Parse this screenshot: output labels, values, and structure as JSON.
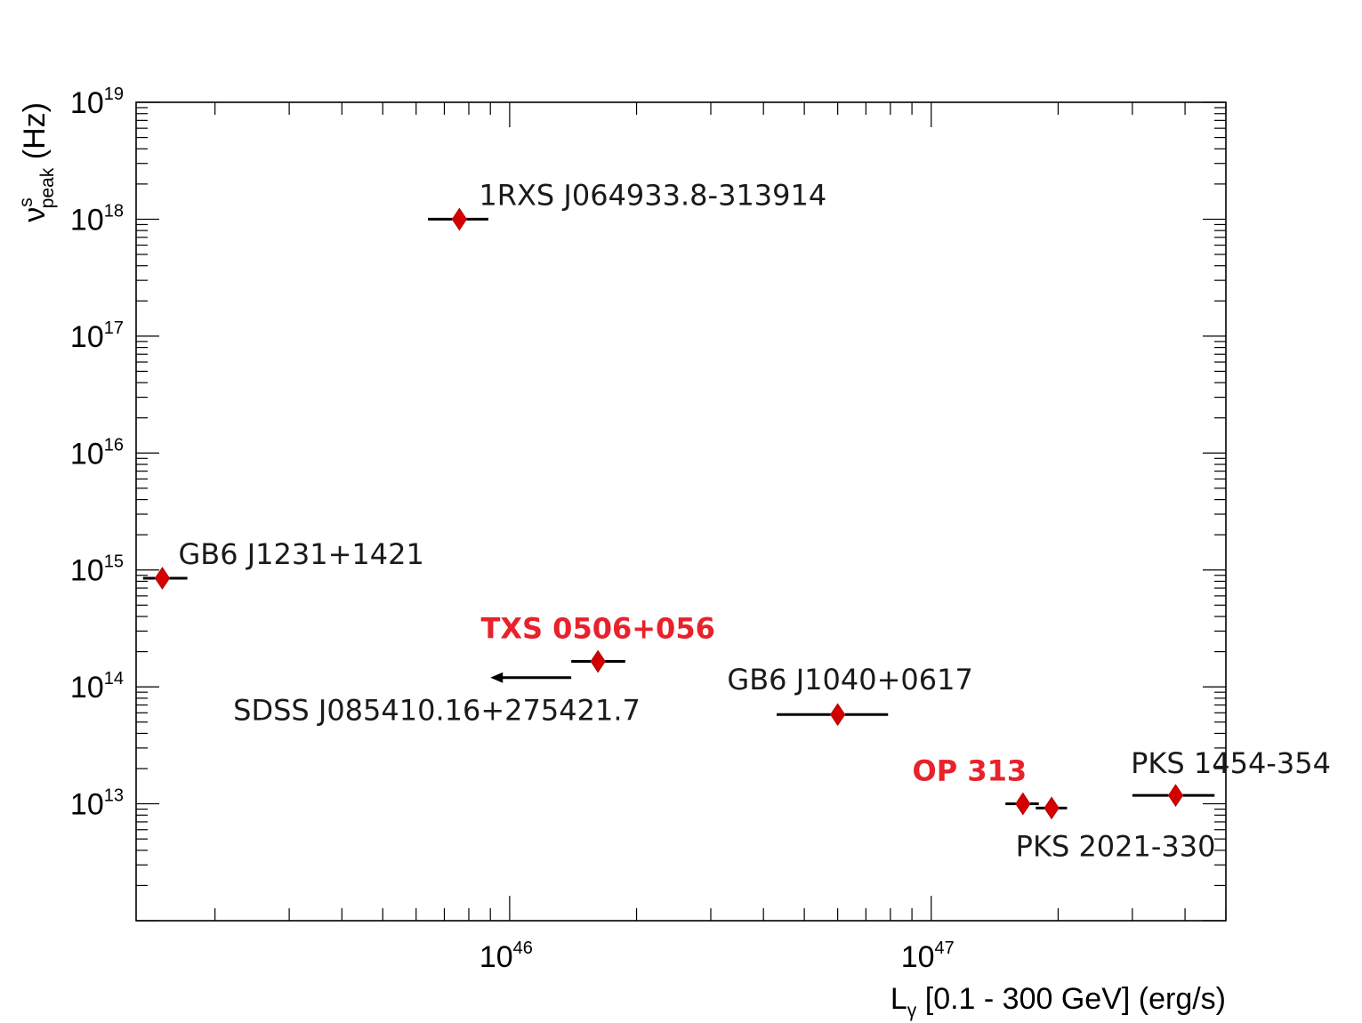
{
  "chart_data": {
    "type": "scatter",
    "title": "",
    "x_scale": "log",
    "y_scale": "log",
    "xlim": [
      1.3e+45,
      5e+47
    ],
    "ylim": [
      1000000000000.0,
      1e+19
    ],
    "xlabel": {
      "main": "L",
      "sub": "γ",
      "rest": " [0.1 - 300 GeV] (erg/s)"
    },
    "ylabel": {
      "main": "ν",
      "sup": "s",
      "sub": "peak",
      "rest": " (Hz)"
    },
    "x_ticks": [
      {
        "base": "10",
        "exp": "46",
        "value": 1e+46
      },
      {
        "base": "10",
        "exp": "47",
        "value": 1e+47
      }
    ],
    "y_ticks": [
      {
        "base": "10",
        "exp": "13",
        "value": 10000000000000.0
      },
      {
        "base": "10",
        "exp": "14",
        "value": 100000000000000.0
      },
      {
        "base": "10",
        "exp": "15",
        "value": 1000000000000000.0
      },
      {
        "base": "10",
        "exp": "16",
        "value": 1e+16
      },
      {
        "base": "10",
        "exp": "17",
        "value": 1e+17
      },
      {
        "base": "10",
        "exp": "18",
        "value": 1e+18
      },
      {
        "base": "10",
        "exp": "19",
        "value": 1e+19
      }
    ],
    "points": [
      {
        "name": "1RXS J064933.8-313914",
        "x": 7.6e+45,
        "y": 1e+18,
        "x_lo": 6.4e+45,
        "x_hi": 8.9e+45,
        "highlight": false,
        "upper_limit": false
      },
      {
        "name": "GB6 J1231+1421",
        "x": 1.5e+45,
        "y": 850000000000000.0,
        "x_lo": 1.35e+45,
        "x_hi": 1.72e+45,
        "highlight": false,
        "upper_limit": false
      },
      {
        "name": "TXS 0506+056",
        "x": 1.62e+46,
        "y": 165000000000000.0,
        "x_lo": 1.4e+46,
        "x_hi": 1.88e+46,
        "highlight": true,
        "upper_limit": false
      },
      {
        "name": "SDSS J085410.16+275421.7",
        "x": 1.4e+46,
        "y": 120000000000000.0,
        "x_lo": 9e+45,
        "x_hi": 1.4e+46,
        "highlight": false,
        "upper_limit": true
      },
      {
        "name": "GB6 J1040+0617",
        "x": 6e+46,
        "y": 58000000000000.0,
        "x_lo": 4.3e+46,
        "x_hi": 7.9e+46,
        "highlight": false,
        "upper_limit": false
      },
      {
        "name": "OP 313",
        "x": 1.65e+47,
        "y": 10000000000000.0,
        "x_lo": 1.5e+47,
        "x_hi": 1.8e+47,
        "highlight": true,
        "upper_limit": false
      },
      {
        "name": "PKS 2021-330",
        "x": 1.93e+47,
        "y": 9200000000000.0,
        "x_lo": 1.77e+47,
        "x_hi": 2.1e+47,
        "highlight": false,
        "upper_limit": false
      },
      {
        "name": "PKS 1454-354",
        "x": 3.8e+47,
        "y": 11800000000000.0,
        "x_lo": 3e+47,
        "x_hi": 4.7e+47,
        "highlight": false,
        "upper_limit": false
      }
    ],
    "colors": {
      "marker": "#d40000",
      "highlight_label": "#e8212b",
      "label": "#1a1a1a"
    },
    "grid": false,
    "legend": "none"
  }
}
